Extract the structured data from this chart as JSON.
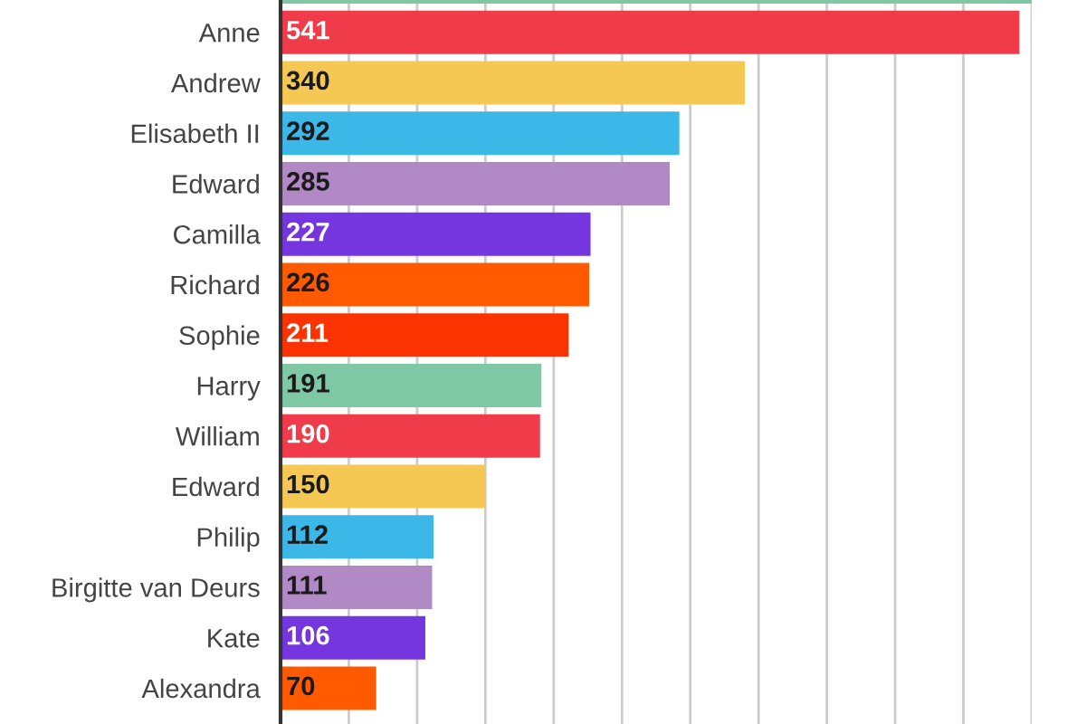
{
  "chart_data": {
    "type": "bar",
    "orientation": "horizontal",
    "categories": [
      null,
      "Anne",
      "Andrew",
      "Elisabeth II",
      "Edward",
      "Camilla",
      "Richard",
      "Sophie",
      "Harry",
      "William",
      "Edward",
      "Philip",
      "Birgitte van Deurs",
      "Kate",
      "Alexandra"
    ],
    "values": [
      550,
      541,
      340,
      292,
      285,
      227,
      226,
      211,
      191,
      190,
      150,
      112,
      111,
      106,
      70
    ],
    "value_labels": [
      null,
      "541",
      "340",
      "292",
      "285",
      "227",
      "226",
      "211",
      "191",
      "190",
      "150",
      "112",
      "111",
      "106",
      "70"
    ],
    "colors": [
      "#7ec8a4",
      "#ef3b4a",
      "#f5c853",
      "#3bb7e8",
      "#b18ac5",
      "#7536e0",
      "#ff5a00",
      "#fb3300",
      "#7ec8a4",
      "#ef3b4a",
      "#f5c853",
      "#3bb7e8",
      "#b18ac5",
      "#7536e0",
      "#ff5a00"
    ],
    "xlim": [
      0,
      550
    ],
    "xticks": [
      {
        "value": 0,
        "label": null
      },
      {
        "value": 50,
        "label": null
      },
      {
        "value": 100,
        "label": null
      },
      {
        "value": 150,
        "label": null
      },
      {
        "value": 200,
        "label": null
      },
      {
        "value": 250,
        "label": null
      },
      {
        "value": 300,
        "label": null
      },
      {
        "value": 350,
        "label": null
      },
      {
        "value": 400,
        "label": null
      },
      {
        "value": 450,
        "label": null
      },
      {
        "value": 500,
        "label": null
      },
      {
        "value": 550,
        "label": null
      }
    ],
    "grid": "x",
    "tick_labels": "y"
  }
}
